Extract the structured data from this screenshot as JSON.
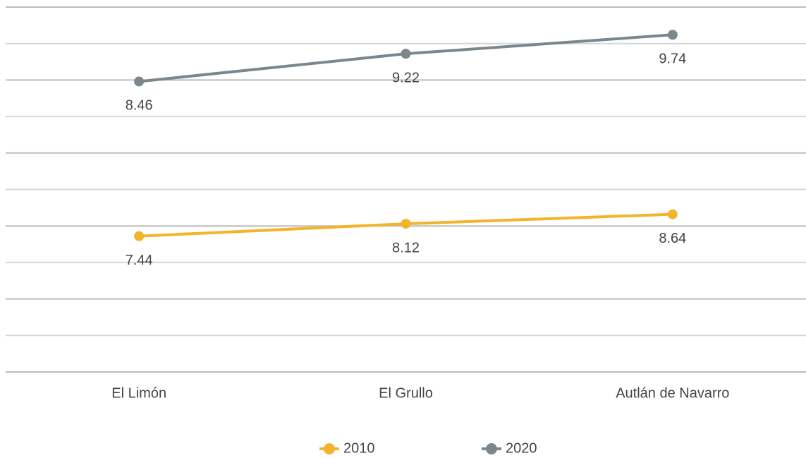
{
  "chart_data": {
    "type": "line",
    "categories": [
      "El Limón",
      "El Grullo",
      "Autlán de Navarro"
    ],
    "series": [
      {
        "name": "2010",
        "color": "#f2b42a",
        "values": [
          7.44,
          8.12,
          8.64
        ],
        "axis": "y2"
      },
      {
        "name": "2020",
        "color": "#7b868d",
        "values": [
          8.46,
          9.22,
          9.74
        ]
      }
    ],
    "ylim": [
      0.5,
      10.5
    ],
    "yticks": [
      0.5,
      1.5,
      2.5,
      3.5,
      4.5,
      5.5,
      6.5,
      7.5,
      8.5,
      9.5,
      10.5
    ],
    "y2lim": [
      0,
      20
    ],
    "grid": true,
    "legend": "bottom"
  }
}
